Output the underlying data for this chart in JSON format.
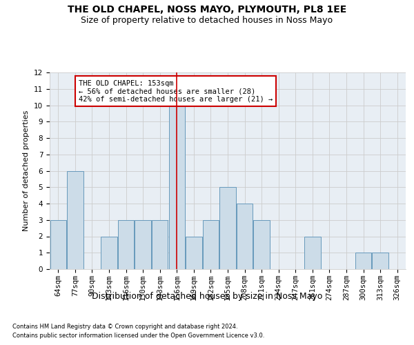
{
  "title": "THE OLD CHAPEL, NOSS MAYO, PLYMOUTH, PL8 1EE",
  "subtitle": "Size of property relative to detached houses in Noss Mayo",
  "xlabel": "Distribution of detached houses by size in Noss Mayo",
  "ylabel": "Number of detached properties",
  "footnote1": "Contains HM Land Registry data © Crown copyright and database right 2024.",
  "footnote2": "Contains public sector information licensed under the Open Government Licence v3.0.",
  "categories": [
    "64sqm",
    "77sqm",
    "90sqm",
    "103sqm",
    "116sqm",
    "130sqm",
    "143sqm",
    "156sqm",
    "169sqm",
    "182sqm",
    "195sqm",
    "208sqm",
    "221sqm",
    "234sqm",
    "247sqm",
    "261sqm",
    "274sqm",
    "287sqm",
    "300sqm",
    "313sqm",
    "326sqm"
  ],
  "values": [
    3,
    6,
    0,
    2,
    3,
    3,
    3,
    10,
    2,
    3,
    5,
    4,
    3,
    0,
    0,
    2,
    0,
    0,
    1,
    1,
    0
  ],
  "highlight_index": 7,
  "bar_color": "#ccdce8",
  "bar_edge_color": "#6699bb",
  "highlight_line_color": "#cc0000",
  "annotation_text": "THE OLD CHAPEL: 153sqm\n← 56% of detached houses are smaller (28)\n42% of semi-detached houses are larger (21) →",
  "annotation_box_facecolor": "#ffffff",
  "annotation_box_edgecolor": "#cc0000",
  "ylim": [
    0,
    12
  ],
  "yticks": [
    0,
    1,
    2,
    3,
    4,
    5,
    6,
    7,
    8,
    9,
    10,
    11,
    12
  ],
  "grid_color": "#cccccc",
  "background_color": "#e8eef4",
  "title_fontsize": 10,
  "subtitle_fontsize": 9,
  "xlabel_fontsize": 9,
  "ylabel_fontsize": 8,
  "tick_fontsize": 7.5,
  "annotation_fontsize": 7.5,
  "footnote_fontsize": 6
}
